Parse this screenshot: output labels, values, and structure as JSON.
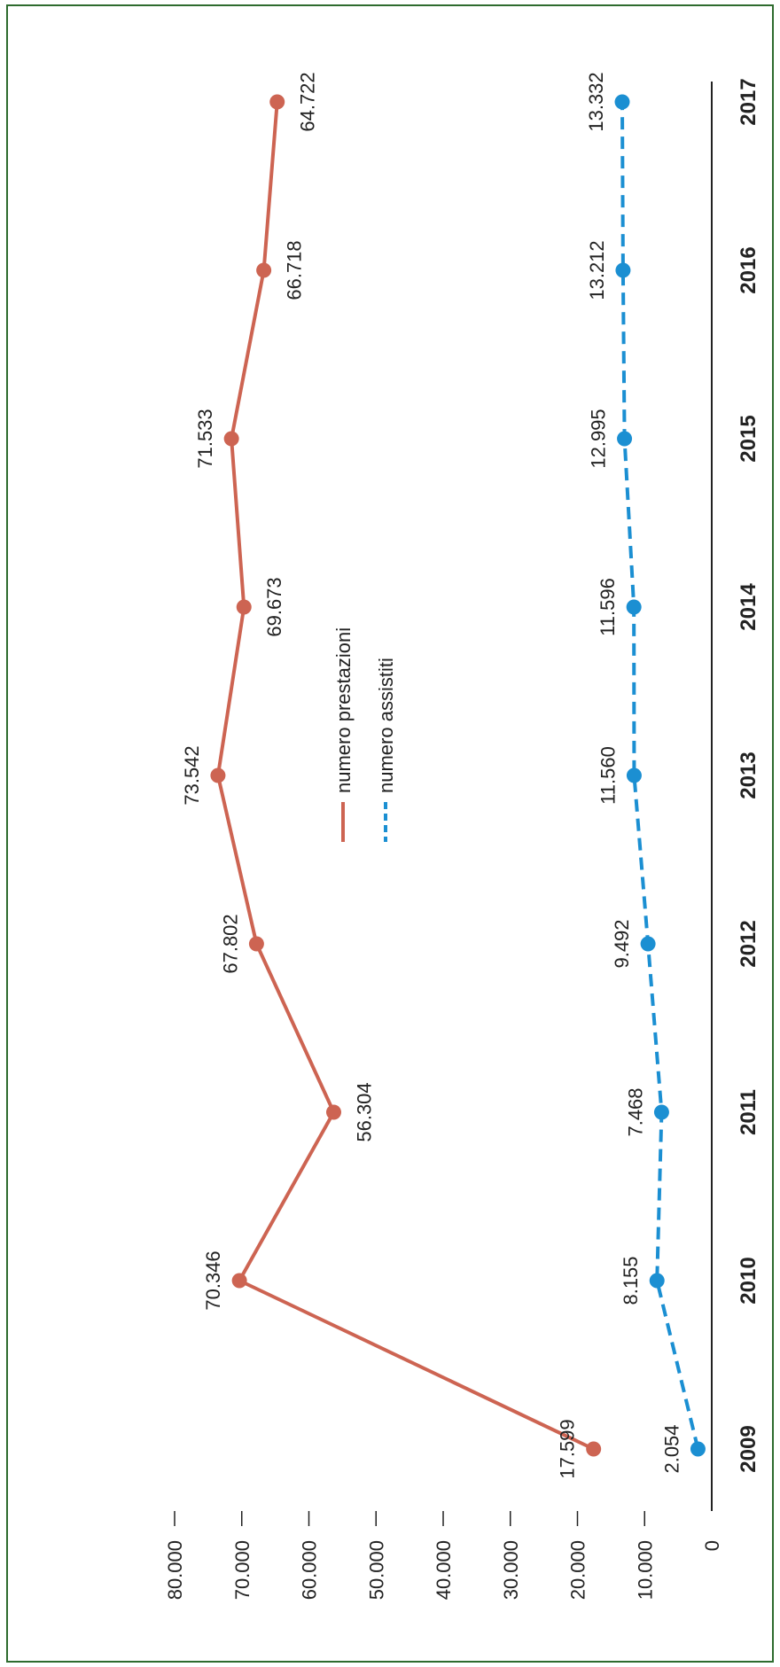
{
  "chart_data": {
    "type": "line",
    "orientation": "rotated-90-clockwise",
    "categories": [
      "2009",
      "2010",
      "2011",
      "2012",
      "2013",
      "2014",
      "2015",
      "2016",
      "2017"
    ],
    "ylim": [
      0,
      80000
    ],
    "y_ticks": [
      "0",
      "10.000",
      "20.000",
      "30.000",
      "40.000",
      "50.000",
      "60.000",
      "70.000",
      "80.000"
    ],
    "y_tick_values": [
      0,
      10000,
      20000,
      30000,
      40000,
      50000,
      60000,
      70000,
      80000
    ],
    "legend_position": "center",
    "series": [
      {
        "name": "numero prestazioni",
        "color": "#cd6452",
        "style": "solid",
        "values": [
          17599,
          70346,
          56304,
          67802,
          73542,
          69673,
          71533,
          66718,
          64722
        ],
        "labels": [
          "17.599",
          "70.346",
          "56.304",
          "67.802",
          "73.542",
          "69.673",
          "71.533",
          "66.718",
          "64.722"
        ],
        "label_side": [
          "above",
          "above",
          "below",
          "above",
          "above",
          "below",
          "above",
          "below",
          "below"
        ]
      },
      {
        "name": "numero assistiti",
        "color": "#1b8fd2",
        "style": "dashed",
        "values": [
          2054,
          8155,
          7468,
          9492,
          11560,
          11596,
          12995,
          13212,
          13332
        ],
        "labels": [
          "2.054",
          "8.155",
          "7.468",
          "9.492",
          "11.560",
          "11.596",
          "12.995",
          "13.212",
          "13.332"
        ],
        "label_side": [
          "above",
          "above",
          "above",
          "above",
          "above",
          "above",
          "above",
          "above",
          "above"
        ]
      }
    ]
  },
  "colors": {
    "frame": "#2e6b2e",
    "axis": "#222222"
  }
}
